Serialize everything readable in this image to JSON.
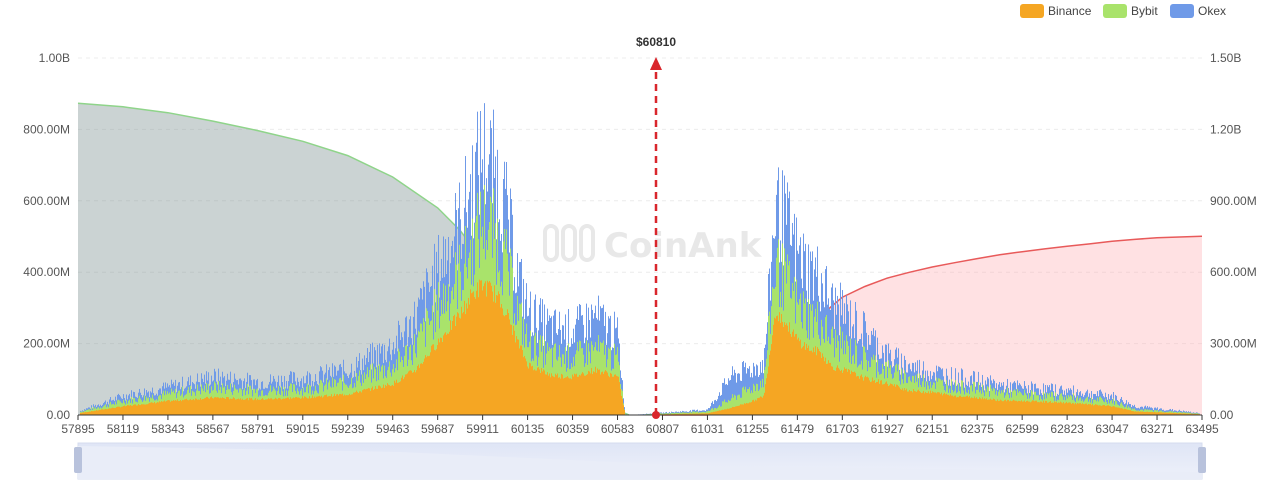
{
  "chart_data": {
    "type": "bar",
    "title": "",
    "watermark": "CoinAnk",
    "current_price_label": "$60810",
    "current_price": 60810,
    "legend": [
      {
        "name": "Binance",
        "color": "#f5a623"
      },
      {
        "name": "Bybit",
        "color": "#a9e36b"
      },
      {
        "name": "Okex",
        "color": "#6f9ae8"
      }
    ],
    "x_ticks": [
      "57895",
      "58119",
      "58343",
      "58567",
      "58791",
      "59015",
      "59239",
      "59463",
      "59687",
      "59911",
      "60135",
      "60359",
      "60583",
      "60807",
      "61031",
      "61255",
      "61479",
      "61703",
      "61927",
      "62151",
      "62375",
      "62599",
      "62823",
      "63047",
      "63271",
      "63495"
    ],
    "x_range": [
      57895,
      63495
    ],
    "y_left_ticks": [
      "0.00",
      "200.00M",
      "400.00M",
      "600.00M",
      "800.00M",
      "1.00B"
    ],
    "y_left_range": [
      0,
      1000000000
    ],
    "y_right_ticks": [
      "0.00",
      "300.00M",
      "600.00M",
      "900.00M",
      "1.20B",
      "1.50B"
    ],
    "y_right_range": [
      0,
      1500000000
    ],
    "grid": true,
    "legend_position": "top-right",
    "liquidation_profile": {
      "price": [
        57895,
        58119,
        58343,
        58567,
        58791,
        59015,
        59239,
        59463,
        59575,
        59687,
        59799,
        59855,
        59911,
        59967,
        60023,
        60079,
        60135,
        60247,
        60359,
        60471,
        60583,
        60620,
        60640,
        61031,
        61143,
        61255,
        61311,
        61367,
        61423,
        61479,
        61535,
        61591,
        61647,
        61703,
        61815,
        61927,
        62039,
        62151,
        62263,
        62375,
        62487,
        62599,
        62711,
        62823,
        62935,
        63047,
        63159,
        63271,
        63383,
        63495
      ],
      "binance": [
        5,
        25,
        40,
        50,
        45,
        50,
        60,
        90,
        130,
        210,
        290,
        345,
        375,
        350,
        300,
        215,
        145,
        115,
        110,
        130,
        110,
        0,
        0,
        5,
        20,
        40,
        55,
        300,
        260,
        215,
        190,
        180,
        140,
        130,
        105,
        90,
        70,
        65,
        55,
        50,
        42,
        40,
        38,
        35,
        30,
        25,
        10,
        8,
        5,
        2
      ],
      "bybit": [
        8,
        40,
        60,
        80,
        70,
        75,
        95,
        140,
        200,
        310,
        410,
        480,
        560,
        520,
        440,
        310,
        205,
        170,
        165,
        190,
        160,
        0,
        0,
        10,
        45,
        80,
        100,
        430,
        380,
        315,
        285,
        265,
        215,
        200,
        160,
        130,
        105,
        95,
        82,
        76,
        65,
        60,
        55,
        52,
        45,
        40,
        16,
        12,
        8,
        3
      ],
      "okex": [
        10,
        55,
        80,
        110,
        95,
        105,
        130,
        200,
        280,
        420,
        560,
        660,
        760,
        700,
        600,
        420,
        300,
        250,
        245,
        285,
        230,
        0,
        0,
        15,
        110,
        135,
        150,
        600,
        550,
        460,
        420,
        395,
        320,
        300,
        240,
        170,
        140,
        125,
        110,
        100,
        85,
        80,
        75,
        70,
        62,
        55,
        25,
        18,
        12,
        4
      ]
    },
    "cumulative_short": {
      "price": [
        57895,
        58119,
        58343,
        58567,
        58791,
        59015,
        59239,
        59463,
        59687,
        59799,
        59911,
        59967,
        60023,
        60135,
        60247,
        60359,
        60471,
        60583,
        60640
      ],
      "value": [
        1310,
        1295,
        1270,
        1235,
        1195,
        1150,
        1090,
        1000,
        870,
        775,
        650,
        580,
        490,
        335,
        235,
        150,
        80,
        20,
        0
      ]
    },
    "cumulative_long": {
      "price": [
        60807,
        60919,
        61031,
        61143,
        61255,
        61311,
        61367,
        61423,
        61479,
        61535,
        61591,
        61647,
        61703,
        61815,
        61927,
        62039,
        62151,
        62263,
        62375,
        62487,
        62599,
        62711,
        62823,
        62935,
        63047,
        63159,
        63271,
        63383,
        63495
      ],
      "value": [
        0,
        0,
        0,
        20,
        45,
        60,
        150,
        220,
        300,
        350,
        410,
        455,
        495,
        540,
        575,
        600,
        622,
        640,
        657,
        673,
        686,
        698,
        709,
        719,
        730,
        738,
        745,
        748,
        751
      ]
    }
  }
}
